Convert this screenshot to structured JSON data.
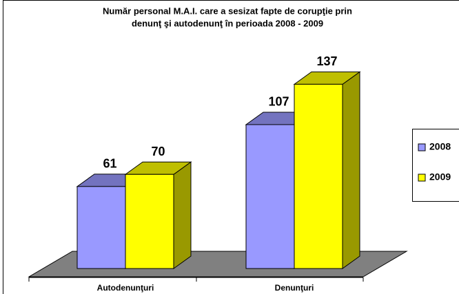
{
  "chart_data": {
    "type": "bar3d",
    "title": [
      "Număr personal M.A.I. care a sesizat fapte de corupţie prin",
      "denunţ şi autodenunţ în perioada 2008 - 2009"
    ],
    "categories": [
      "Autodenunţuri",
      "Denunţuri"
    ],
    "series": [
      {
        "name": "2008",
        "color": "#9999ff",
        "values": [
          61,
          107
        ]
      },
      {
        "name": "2009",
        "color": "#ffff00",
        "values": [
          70,
          137
        ]
      }
    ],
    "ylim": [
      0,
      150
    ]
  }
}
